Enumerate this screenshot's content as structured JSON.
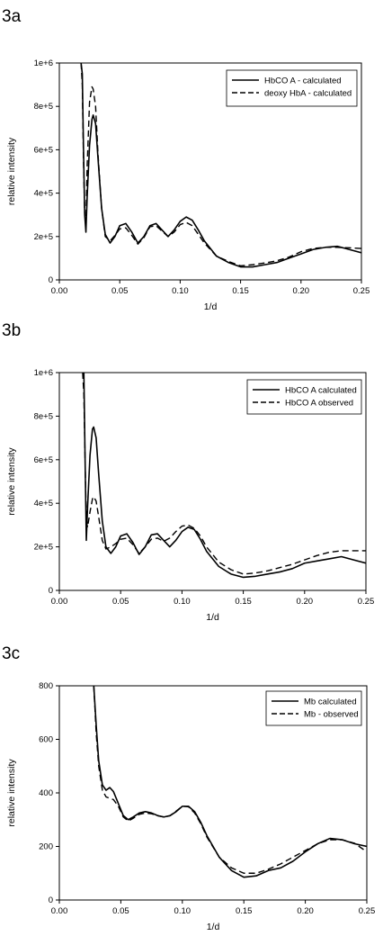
{
  "panels": [
    "3a",
    "3b",
    "3c"
  ],
  "chart_data": [
    {
      "type": "line",
      "title": "",
      "xlabel": "1/d",
      "ylabel": "relative intensity",
      "xlim": [
        0.0,
        0.25
      ],
      "ylim": [
        0,
        1000000
      ],
      "xticks": [
        0.0,
        0.05,
        0.1,
        0.15,
        0.2,
        0.25
      ],
      "xtick_labels": [
        "0.00",
        "0.05",
        "0.10",
        "0.15",
        "0.20",
        "0.25"
      ],
      "yticks": [
        0,
        200000,
        400000,
        600000,
        800000,
        1000000
      ],
      "ytick_labels": [
        "0",
        "2e+5",
        "4e+5",
        "6e+5",
        "8e+5",
        "1e+6"
      ],
      "grid": false,
      "legend_position": "top-right",
      "series": [
        {
          "name": "HbCO A - calculated",
          "style": "solid",
          "x": [
            0.018,
            0.019,
            0.02,
            0.021,
            0.022,
            0.023,
            0.025,
            0.027,
            0.028,
            0.03,
            0.032,
            0.035,
            0.038,
            0.042,
            0.046,
            0.05,
            0.055,
            0.06,
            0.065,
            0.07,
            0.075,
            0.08,
            0.085,
            0.09,
            0.095,
            0.1,
            0.105,
            0.11,
            0.115,
            0.12,
            0.13,
            0.14,
            0.15,
            0.16,
            0.17,
            0.18,
            0.19,
            0.2,
            0.21,
            0.22,
            0.23,
            0.24,
            0.25
          ],
          "y": [
            1000000,
            950000,
            600000,
            300000,
            220000,
            380000,
            620000,
            740000,
            760000,
            720000,
            560000,
            330000,
            210000,
            170000,
            200000,
            250000,
            260000,
            220000,
            170000,
            200000,
            250000,
            260000,
            230000,
            200000,
            230000,
            270000,
            290000,
            275000,
            230000,
            180000,
            110000,
            80000,
            60000,
            60000,
            70000,
            80000,
            100000,
            120000,
            140000,
            150000,
            155000,
            140000,
            125000
          ]
        },
        {
          "name": "deoxy HbA - calculated",
          "style": "dashed",
          "x": [
            0.018,
            0.019,
            0.02,
            0.021,
            0.022,
            0.023,
            0.025,
            0.027,
            0.028,
            0.03,
            0.032,
            0.035,
            0.038,
            0.042,
            0.046,
            0.05,
            0.055,
            0.06,
            0.065,
            0.07,
            0.075,
            0.08,
            0.085,
            0.09,
            0.095,
            0.1,
            0.105,
            0.11,
            0.115,
            0.12,
            0.13,
            0.14,
            0.15,
            0.16,
            0.17,
            0.18,
            0.19,
            0.2,
            0.21,
            0.22,
            0.23,
            0.24,
            0.25
          ],
          "y": [
            1000000,
            900000,
            550000,
            300000,
            260000,
            520000,
            820000,
            890000,
            880000,
            800000,
            580000,
            330000,
            200000,
            180000,
            205000,
            235000,
            240000,
            205000,
            165000,
            195000,
            245000,
            250000,
            225000,
            200000,
            220000,
            255000,
            265000,
            250000,
            210000,
            170000,
            110000,
            85000,
            65000,
            70000,
            78000,
            88000,
            105000,
            130000,
            145000,
            150000,
            150000,
            148000,
            145000
          ]
        }
      ]
    },
    {
      "type": "line",
      "title": "",
      "xlabel": "1/d",
      "ylabel": "relative intensity",
      "xlim": [
        0.0,
        0.25
      ],
      "ylim": [
        0,
        1000000
      ],
      "xticks": [
        0.0,
        0.05,
        0.1,
        0.15,
        0.2,
        0.25
      ],
      "xtick_labels": [
        "0.00",
        "0.05",
        "0.10",
        "0.15",
        "0.20",
        "0.25"
      ],
      "yticks": [
        0,
        200000,
        400000,
        600000,
        800000,
        1000000
      ],
      "ytick_labels": [
        "0",
        "2e+5",
        "4e+5",
        "6e+5",
        "8e+5",
        "1e+6"
      ],
      "grid": false,
      "legend_position": "top-right",
      "series": [
        {
          "name": "HbCO A calculated",
          "style": "solid",
          "x": [
            0.02,
            0.021,
            0.022,
            0.023,
            0.025,
            0.027,
            0.028,
            0.03,
            0.032,
            0.035,
            0.038,
            0.042,
            0.046,
            0.05,
            0.055,
            0.06,
            0.065,
            0.07,
            0.075,
            0.08,
            0.085,
            0.09,
            0.095,
            0.1,
            0.105,
            0.11,
            0.115,
            0.12,
            0.13,
            0.14,
            0.15,
            0.16,
            0.17,
            0.18,
            0.19,
            0.2,
            0.21,
            0.22,
            0.23,
            0.24,
            0.25
          ],
          "y": [
            1000000,
            600000,
            230000,
            380000,
            620000,
            740000,
            750000,
            700000,
            540000,
            320000,
            200000,
            170000,
            200000,
            250000,
            260000,
            220000,
            165000,
            200000,
            255000,
            260000,
            230000,
            200000,
            230000,
            270000,
            290000,
            280000,
            235000,
            180000,
            110000,
            75000,
            60000,
            65000,
            75000,
            85000,
            100000,
            125000,
            135000,
            145000,
            155000,
            140000,
            125000
          ]
        },
        {
          "name": "HbCO A observed",
          "style": "dashed",
          "x": [
            0.019,
            0.02,
            0.021,
            0.022,
            0.023,
            0.025,
            0.027,
            0.028,
            0.03,
            0.032,
            0.035,
            0.038,
            0.042,
            0.046,
            0.05,
            0.055,
            0.06,
            0.065,
            0.07,
            0.075,
            0.08,
            0.085,
            0.09,
            0.095,
            0.1,
            0.105,
            0.11,
            0.115,
            0.12,
            0.13,
            0.14,
            0.15,
            0.16,
            0.17,
            0.18,
            0.19,
            0.2,
            0.21,
            0.22,
            0.23,
            0.24,
            0.25
          ],
          "y": [
            1000000,
            900000,
            600000,
            320000,
            290000,
            360000,
            420000,
            430000,
            410000,
            340000,
            230000,
            190000,
            200000,
            215000,
            235000,
            240000,
            210000,
            170000,
            200000,
            235000,
            240000,
            225000,
            240000,
            270000,
            295000,
            300000,
            285000,
            250000,
            200000,
            130000,
            95000,
            75000,
            80000,
            90000,
            105000,
            120000,
            140000,
            160000,
            175000,
            182000,
            182000,
            182000
          ]
        }
      ]
    },
    {
      "type": "line",
      "title": "",
      "xlabel": "1/d",
      "ylabel": "relative intensity",
      "xlim": [
        0.0,
        0.25
      ],
      "ylim": [
        0,
        800
      ],
      "xticks": [
        0.0,
        0.05,
        0.1,
        0.15,
        0.2,
        0.25
      ],
      "xtick_labels": [
        "0.00",
        "0.05",
        "0.10",
        "0.15",
        "0.20",
        "0.25"
      ],
      "yticks": [
        0,
        200,
        400,
        600,
        800
      ],
      "ytick_labels": [
        "0",
        "200",
        "400",
        "600",
        "800"
      ],
      "grid": false,
      "legend_position": "top-right",
      "series": [
        {
          "name": "Mb calculated",
          "style": "solid",
          "x": [
            0.028,
            0.03,
            0.032,
            0.035,
            0.038,
            0.041,
            0.044,
            0.048,
            0.052,
            0.056,
            0.06,
            0.065,
            0.07,
            0.075,
            0.08,
            0.085,
            0.09,
            0.095,
            0.1,
            0.105,
            0.11,
            0.115,
            0.12,
            0.13,
            0.14,
            0.15,
            0.16,
            0.17,
            0.18,
            0.19,
            0.2,
            0.21,
            0.22,
            0.23,
            0.24,
            0.25
          ],
          "y": [
            800,
            650,
            520,
            430,
            410,
            420,
            405,
            360,
            315,
            300,
            310,
            325,
            330,
            325,
            315,
            310,
            315,
            330,
            350,
            350,
            330,
            290,
            240,
            160,
            110,
            85,
            90,
            110,
            120,
            145,
            180,
            210,
            230,
            225,
            210,
            200
          ]
        },
        {
          "name": "Mb - observed",
          "style": "dashed",
          "x": [
            0.028,
            0.03,
            0.032,
            0.035,
            0.038,
            0.041,
            0.044,
            0.048,
            0.052,
            0.056,
            0.06,
            0.065,
            0.07,
            0.075,
            0.08,
            0.085,
            0.09,
            0.095,
            0.1,
            0.105,
            0.11,
            0.115,
            0.12,
            0.13,
            0.14,
            0.15,
            0.16,
            0.17,
            0.18,
            0.19,
            0.2,
            0.21,
            0.22,
            0.23,
            0.24,
            0.25
          ],
          "y": [
            800,
            620,
            500,
            410,
            385,
            380,
            375,
            350,
            310,
            295,
            305,
            320,
            325,
            322,
            315,
            310,
            315,
            332,
            350,
            348,
            325,
            285,
            235,
            160,
            120,
            100,
            100,
            115,
            135,
            160,
            185,
            210,
            225,
            225,
            212,
            180
          ]
        }
      ]
    }
  ]
}
